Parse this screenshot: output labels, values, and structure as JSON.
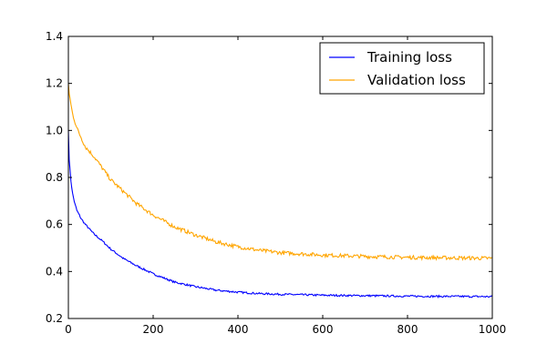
{
  "chart_data": {
    "type": "line",
    "title": "",
    "xlabel": "",
    "ylabel": "",
    "xlim": [
      0,
      1000
    ],
    "ylim": [
      0.2,
      1.4
    ],
    "xticks": [
      0,
      200,
      400,
      600,
      800,
      1000
    ],
    "yticks": [
      0.2,
      0.4,
      0.6,
      0.8,
      1.0,
      1.2,
      1.4
    ],
    "xtick_labels": [
      "0",
      "200",
      "400",
      "600",
      "800",
      "1000"
    ],
    "ytick_labels": [
      "0.2",
      "0.4",
      "0.6",
      "0.8",
      "1.0",
      "1.2",
      "1.4"
    ],
    "grid": false,
    "legend_position": "top-right",
    "series": [
      {
        "name": "Training loss",
        "color": "#0000ff",
        "x": [
          0,
          2,
          5,
          10,
          15,
          20,
          30,
          40,
          50,
          60,
          80,
          100,
          130,
          160,
          200,
          250,
          300,
          350,
          400,
          450,
          500,
          600,
          700,
          800,
          900,
          1000
        ],
        "y": [
          1.0,
          0.88,
          0.8,
          0.73,
          0.69,
          0.66,
          0.625,
          0.6,
          0.58,
          0.56,
          0.53,
          0.495,
          0.455,
          0.425,
          0.39,
          0.355,
          0.335,
          0.32,
          0.312,
          0.306,
          0.303,
          0.299,
          0.297,
          0.295,
          0.294,
          0.293
        ]
      },
      {
        "name": "Validation loss",
        "color": "#ffa500",
        "x": [
          0,
          2,
          5,
          10,
          20,
          30,
          40,
          50,
          60,
          80,
          100,
          130,
          160,
          200,
          250,
          300,
          350,
          400,
          450,
          500,
          600,
          700,
          800,
          900,
          1000
        ],
        "y": [
          1.2,
          1.16,
          1.12,
          1.07,
          1.01,
          0.97,
          0.93,
          0.91,
          0.89,
          0.84,
          0.79,
          0.74,
          0.69,
          0.64,
          0.59,
          0.555,
          0.525,
          0.505,
          0.49,
          0.48,
          0.47,
          0.464,
          0.46,
          0.458,
          0.456
        ]
      }
    ]
  }
}
